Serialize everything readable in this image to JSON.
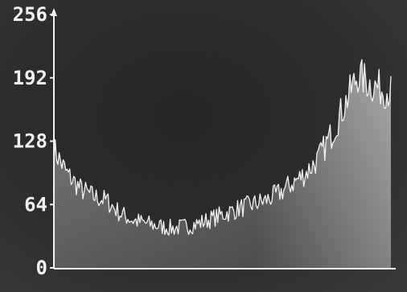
{
  "chart_data": {
    "type": "area",
    "title": "",
    "xlabel": "",
    "ylabel": "",
    "ylim": [
      0,
      256
    ],
    "xlim": [
      0,
      255
    ],
    "y_ticks": [
      0,
      64,
      128,
      192,
      256
    ],
    "y_tick_labels": [
      "0",
      "64",
      "128",
      "192",
      "256"
    ],
    "grid": false,
    "legend": "none",
    "colors": {
      "background": "#2a2a2a",
      "fill_top": "#8a8a8a",
      "fill_bottom": "#4a4a4a",
      "line": "#f2f2f2",
      "axis": "#f2f2f2"
    },
    "series": [
      {
        "x": [
          0,
          10,
          20,
          30,
          40,
          50,
          60,
          70,
          80,
          90,
          100,
          110,
          120,
          130,
          140,
          150,
          160,
          170,
          180,
          190,
          200,
          210,
          220,
          230,
          240,
          250,
          255
        ],
        "values": [
          120,
          95,
          80,
          72,
          68,
          55,
          48,
          45,
          42,
          40,
          42,
          45,
          50,
          55,
          60,
          64,
          68,
          75,
          85,
          95,
          110,
          135,
          165,
          195,
          185,
          180,
          178
        ]
      }
    ]
  }
}
